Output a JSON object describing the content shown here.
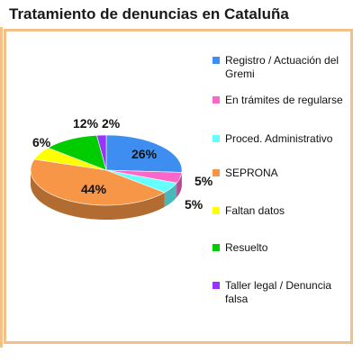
{
  "chart_data": {
    "type": "pie",
    "title": "Tratamiento de denuncias en Cataluña",
    "legend_position": "right",
    "slices": [
      {
        "label": "Registro / Actuación del Gremi",
        "value": 26,
        "display": "26%",
        "color": "#3d8ef0"
      },
      {
        "label": "En trámites de regularse",
        "value": 5,
        "display": "5%",
        "color": "#ff66cc"
      },
      {
        "label": "Proced. Administrativo",
        "value": 5,
        "display": "5%",
        "color": "#66ffff"
      },
      {
        "label": "SEPRONA",
        "value": 44,
        "display": "44%",
        "color": "#f79646"
      },
      {
        "label": "Faltan datos",
        "value": 6,
        "display": "6%",
        "color": "#ffff00"
      },
      {
        "label": "Resuelto",
        "value": 12,
        "display": "12%",
        "color": "#00cc00"
      },
      {
        "label": "Taller legal / Denuncia falsa",
        "value": 2,
        "display": "2%",
        "color": "#9933ff"
      }
    ]
  }
}
